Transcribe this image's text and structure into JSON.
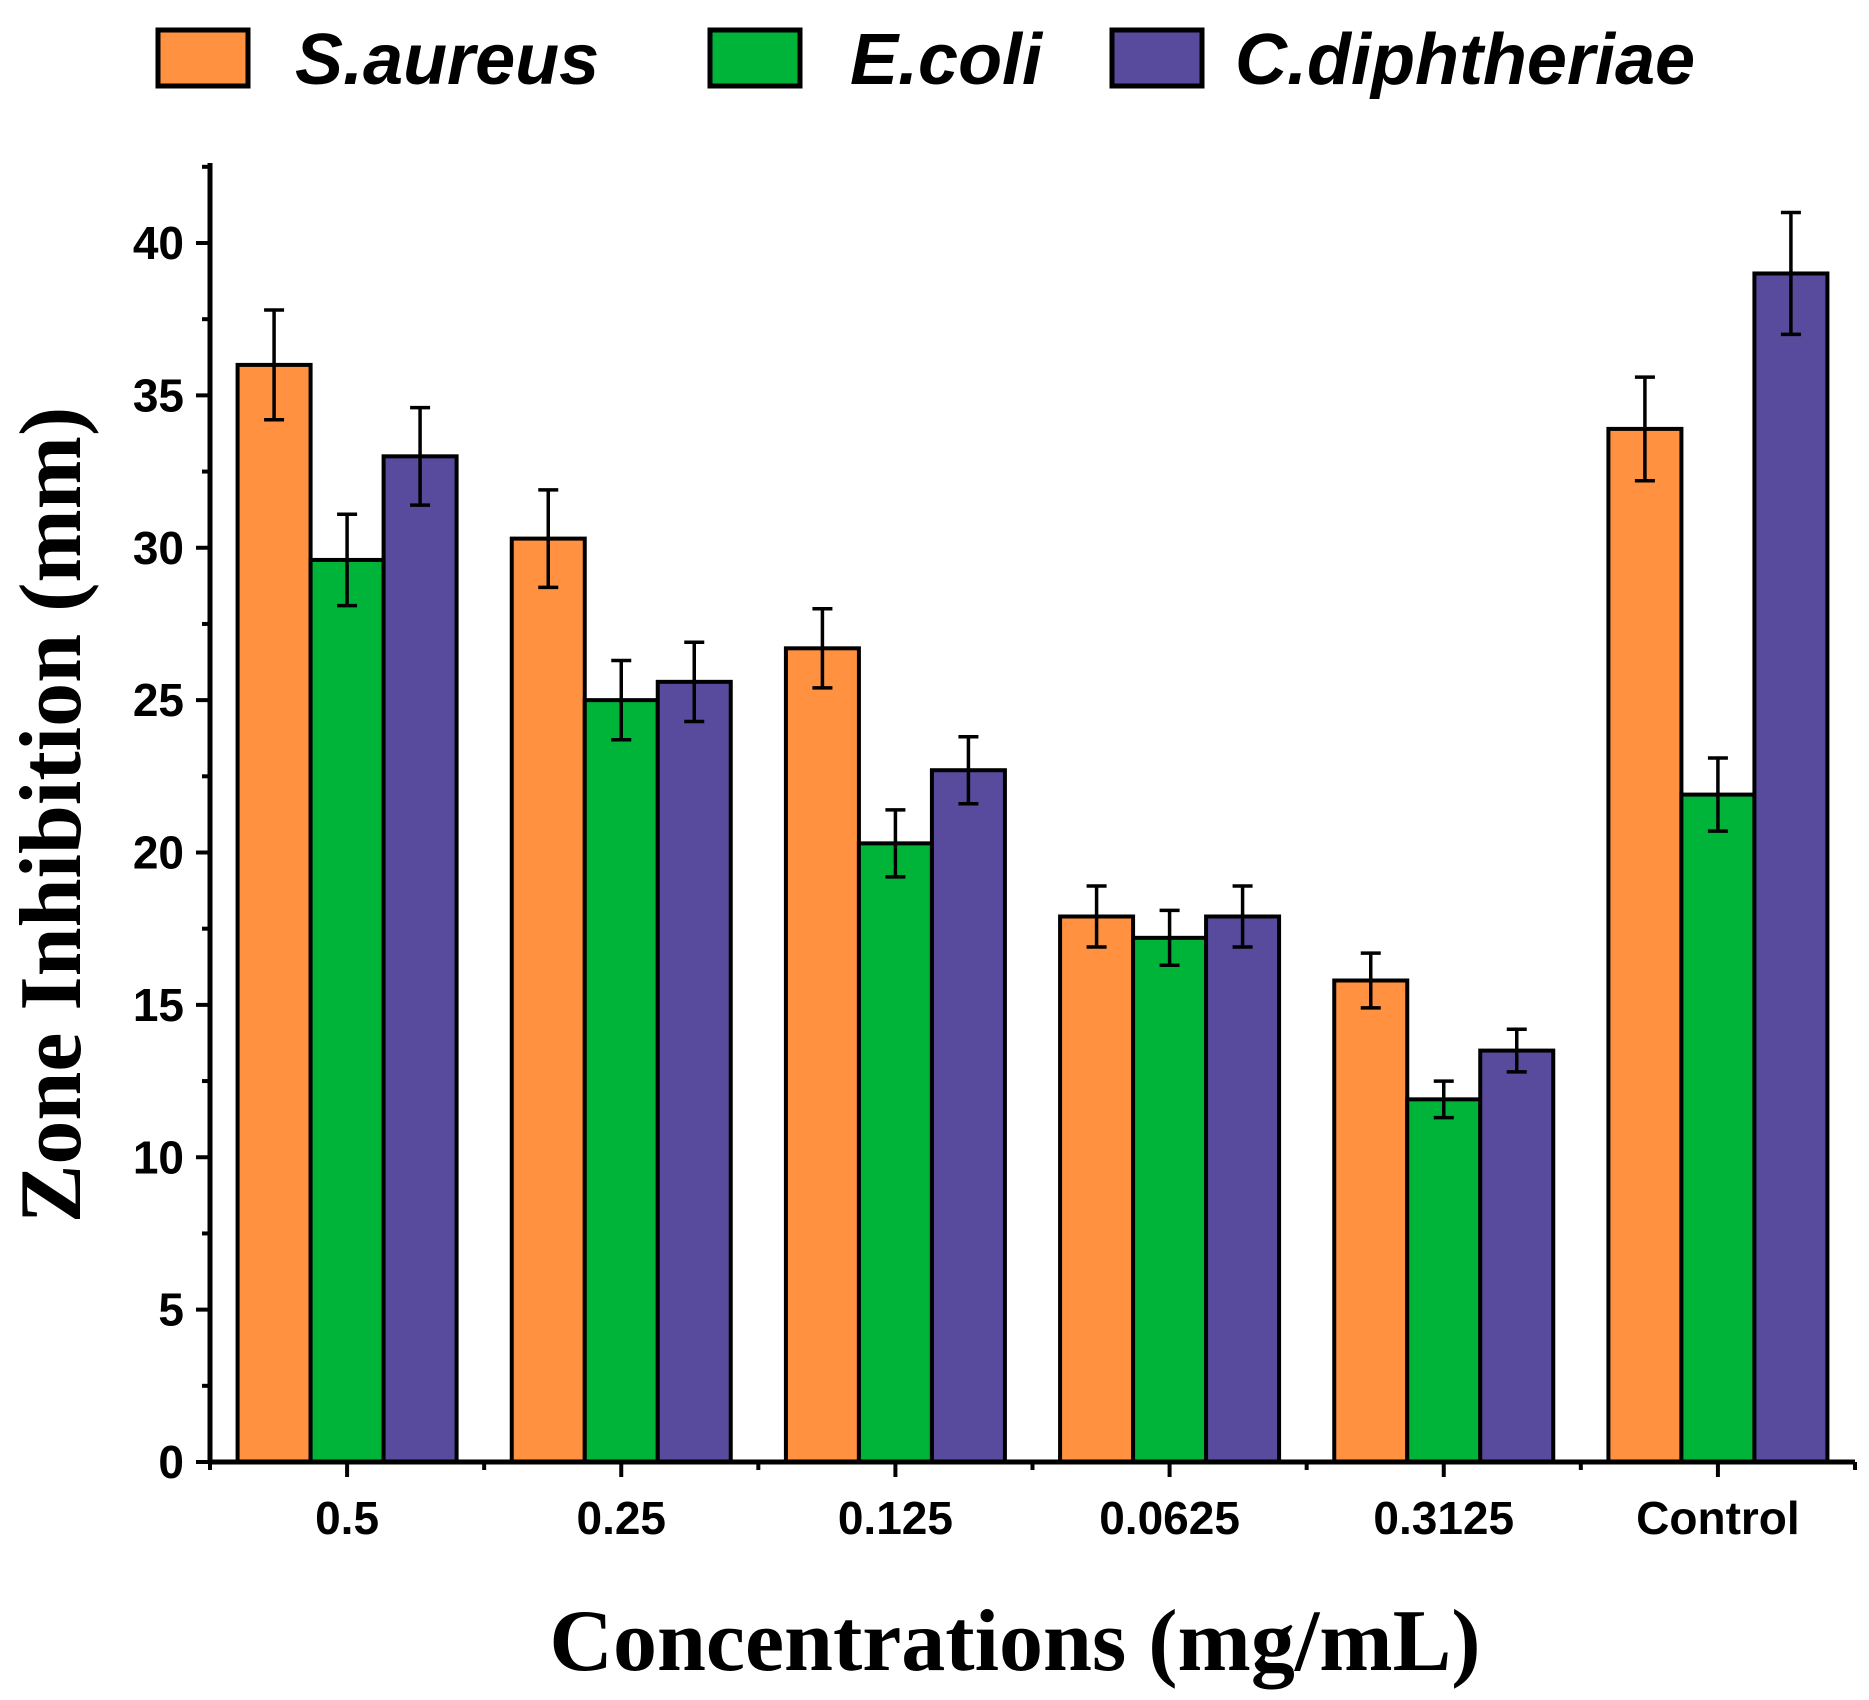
{
  "chart_data": {
    "type": "bar",
    "title": "",
    "xlabel": "Concentrations (mg/mL)",
    "ylabel": "Zone Inhibition (mm)",
    "categories": [
      "0.5",
      "0.25",
      "0.125",
      "0.0625",
      "0.3125",
      "Control"
    ],
    "ylim": [
      0,
      42.5
    ],
    "yticks": [
      "0",
      "5",
      "10",
      "15",
      "20",
      "25",
      "30",
      "35",
      "40"
    ],
    "legend_position": "top",
    "grid": false,
    "series": [
      {
        "name": "S.aureus",
        "color": "#ff9140",
        "values": [
          36.0,
          30.3,
          26.7,
          17.9,
          15.8,
          33.9
        ],
        "errors": [
          1.8,
          1.6,
          1.3,
          1.0,
          0.9,
          1.7
        ]
      },
      {
        "name": "E.coli",
        "color": "#00b43a",
        "values": [
          29.6,
          25.0,
          20.3,
          17.2,
          11.9,
          21.9
        ],
        "errors": [
          1.5,
          1.3,
          1.1,
          0.9,
          0.6,
          1.2
        ]
      },
      {
        "name": "C.diphtheriae",
        "color": "#584a9d",
        "values": [
          33.0,
          25.6,
          22.7,
          17.9,
          13.5,
          39.0
        ],
        "errors": [
          1.6,
          1.3,
          1.1,
          1.0,
          0.7,
          2.0
        ]
      }
    ]
  }
}
